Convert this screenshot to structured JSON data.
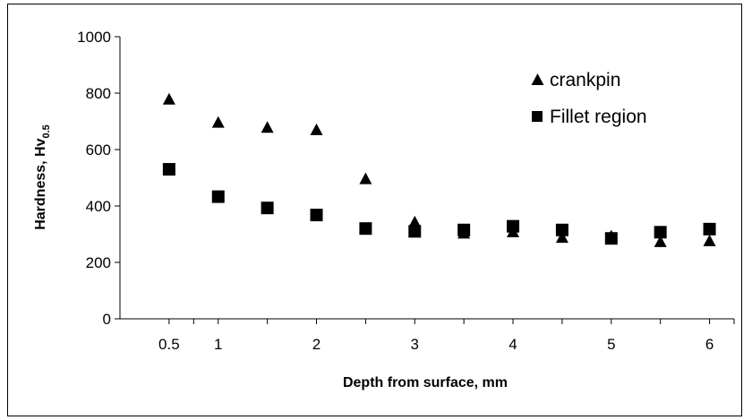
{
  "chart_data": {
    "type": "scatter",
    "xlabel": "Depth from surface, mm",
    "ylabel": "Hardness, Hv",
    "ylabel_subscript": "0.5",
    "ylim": [
      0,
      1000
    ],
    "yticks": [
      0,
      200,
      400,
      600,
      800,
      1000
    ],
    "xlim": [
      0,
      6.25
    ],
    "xticks": [
      0.5,
      1,
      2,
      3,
      4,
      5,
      6
    ],
    "x_minor_ticks": [
      0.75,
      1.5,
      2.5,
      3.5,
      4.5,
      5.5
    ],
    "grid": false,
    "legend_position": "top-right",
    "series": [
      {
        "name": "crankpin",
        "marker": "triangle",
        "color": "#000000",
        "points": [
          {
            "x": 0.5,
            "y": 780
          },
          {
            "x": 1.0,
            "y": 698
          },
          {
            "x": 1.5,
            "y": 680
          },
          {
            "x": 2.0,
            "y": 672
          },
          {
            "x": 2.5,
            "y": 498
          },
          {
            "x": 3.0,
            "y": 345
          },
          {
            "x": 3.5,
            "y": 305
          },
          {
            "x": 4.0,
            "y": 310
          },
          {
            "x": 4.5,
            "y": 290
          },
          {
            "x": 5.0,
            "y": 295
          },
          {
            "x": 5.5,
            "y": 275
          },
          {
            "x": 6.0,
            "y": 278
          }
        ]
      },
      {
        "name": "Fillet region",
        "marker": "square",
        "color": "#000000",
        "points": [
          {
            "x": 0.5,
            "y": 530
          },
          {
            "x": 1.0,
            "y": 433
          },
          {
            "x": 1.5,
            "y": 393
          },
          {
            "x": 2.0,
            "y": 368
          },
          {
            "x": 2.5,
            "y": 320
          },
          {
            "x": 3.0,
            "y": 310
          },
          {
            "x": 3.5,
            "y": 315
          },
          {
            "x": 4.0,
            "y": 328
          },
          {
            "x": 4.5,
            "y": 315
          },
          {
            "x": 5.0,
            "y": 285
          },
          {
            "x": 5.5,
            "y": 307
          },
          {
            "x": 6.0,
            "y": 318
          }
        ]
      }
    ]
  }
}
